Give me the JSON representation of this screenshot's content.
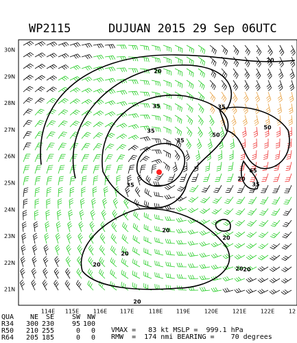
{
  "header": {
    "id": "WP2115",
    "title": "DUJUAN 2015 29 Sep 06UTC"
  },
  "map": {
    "lat_labels": [
      "30N",
      "29N",
      "28N",
      "27N",
      "26N",
      "25N",
      "24N",
      "23N",
      "22N",
      "21N"
    ],
    "lon_labels": [
      "114E",
      "115E",
      "116E",
      "117E",
      "118E",
      "119E",
      "120E",
      "121E",
      "122E",
      "12"
    ],
    "contour_labels": [
      "20",
      "20",
      "35",
      "35",
      "35",
      "35",
      "35",
      "50",
      "50",
      "65",
      "20",
      "35",
      "20",
      "20",
      "20",
      "20",
      "20",
      "20",
      "20"
    ]
  },
  "radii": {
    "columns": [
      "QUA",
      "NE",
      "SE",
      "SW",
      "NW"
    ],
    "rows": [
      [
        "R34",
        300,
        230,
        95,
        100
      ],
      [
        "R50",
        210,
        255,
        0,
        0
      ],
      [
        "R64",
        205,
        185,
        0,
        0
      ]
    ]
  },
  "stats": {
    "line1": "VMAX =   83 kt MSLP =  999.1 hPa",
    "line2": "RMW  =  174 nmi BEARING =    70 degrees"
  }
}
